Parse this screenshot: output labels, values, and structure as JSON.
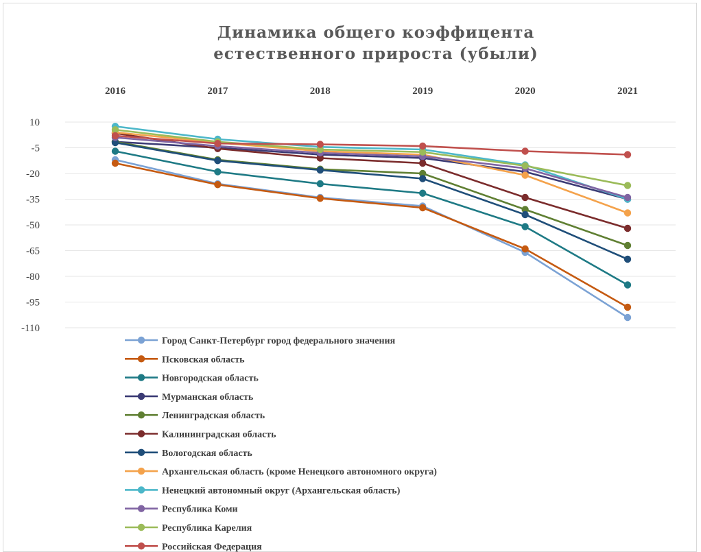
{
  "chart_data": {
    "type": "line",
    "title": "Динамика общего коэффицента естественного прироста (убыли)",
    "title_lines": [
      "Динамика общего коэффицента",
      "естественного прироста (убыли)"
    ],
    "x_axis_position": "top",
    "categories": [
      "2016",
      "2017",
      "2018",
      "2019",
      "2020",
      "2021"
    ],
    "y_ticks": [
      "10",
      "-5",
      "-20",
      "-35",
      "-50",
      "-65",
      "-80",
      "-95",
      "-110"
    ],
    "ylim": [
      -110,
      10
    ],
    "grid": true,
    "legend_position": "bottom",
    "series": [
      {
        "name": "Город Санкт-Петербург город федерального значения",
        "color": "#7ba2d4",
        "values": [
          -12,
          -26,
          -34,
          -39,
          -66,
          -104
        ]
      },
      {
        "name": "Псковская область",
        "color": "#c55a11",
        "values": [
          -14,
          -26.5,
          -34.5,
          -40,
          -64,
          -98
        ]
      },
      {
        "name": "Новгородская область",
        "color": "#1e7a85",
        "values": [
          -7,
          -19,
          -26,
          -31.5,
          -51,
          -85
        ]
      },
      {
        "name": "Мурманская область",
        "color": "#3b3b75",
        "values": [
          -1.5,
          -5,
          -9,
          -11,
          -19,
          -35
        ]
      },
      {
        "name": "Ленинградская область",
        "color": "#5f7f32",
        "values": [
          -1.5,
          -12,
          -17.5,
          -20,
          -41,
          -62
        ]
      },
      {
        "name": "Калининградская область",
        "color": "#7b2c2c",
        "values": [
          3.5,
          -5.5,
          -11,
          -14,
          -34,
          -52
        ]
      },
      {
        "name": "Вологодская область",
        "color": "#1f4e79",
        "values": [
          -2,
          -12.5,
          -18,
          -23,
          -44,
          -70
        ]
      },
      {
        "name": "Архангельская область (кроме Ненецкого автономного округа)",
        "color": "#f4a24b",
        "values": [
          4,
          -2,
          -7,
          -9,
          -21,
          -43
        ]
      },
      {
        "name": "Ненецкий автономный округ (Архангельская область)",
        "color": "#4cb7c9",
        "values": [
          7.5,
          0,
          -4.5,
          -6,
          -15,
          -35
        ]
      },
      {
        "name": "Республика Коми",
        "color": "#8064a2",
        "values": [
          1,
          -4,
          -8,
          -10,
          -17,
          -34
        ]
      },
      {
        "name": "Республика Карелия",
        "color": "#9bbb59",
        "values": [
          5.5,
          -1.5,
          -6,
          -7.5,
          -15.5,
          -27
        ]
      },
      {
        "name": "Российская Федерация",
        "color": "#c0504d",
        "values": [
          2,
          -2.5,
          -3,
          -4,
          -7,
          -9
        ]
      }
    ]
  }
}
